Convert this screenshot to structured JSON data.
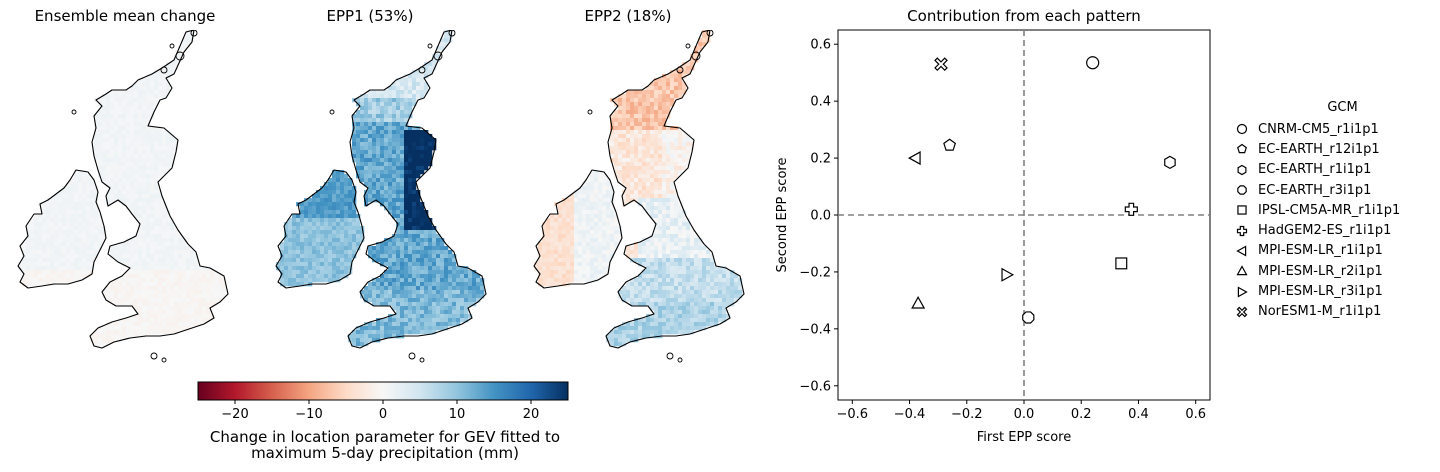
{
  "maps": [
    {
      "title": "Ensemble mean change",
      "field": "mean"
    },
    {
      "title": "EPP1 (53%)",
      "field": "epp1"
    },
    {
      "title": "EPP2 (18%)",
      "field": "epp2"
    }
  ],
  "colorbar": {
    "label_line1": "Change in location parameter for GEV fitted to",
    "label_line2": "maximum 5-day precipitation (mm)",
    "range": [
      -25,
      25
    ],
    "ticks": [
      -20,
      -10,
      0,
      10,
      20
    ],
    "tick_labels": [
      "−20",
      "−10",
      "0",
      "10",
      "20"
    ],
    "colormap": "RdBu"
  },
  "chart_data": {
    "type": "scatter",
    "title": "Contribution from each pattern",
    "xlabel": "First EPP score",
    "ylabel": "Second EPP score",
    "xlim": [
      -0.65,
      0.65
    ],
    "ylim": [
      -0.65,
      0.65
    ],
    "xticks": [
      -0.6,
      -0.4,
      -0.2,
      0.0,
      0.2,
      0.4,
      0.6
    ],
    "yticks": [
      -0.6,
      -0.4,
      -0.2,
      0.0,
      0.2,
      0.4,
      0.6
    ],
    "xtick_labels": [
      "−0.6",
      "−0.4",
      "−0.2",
      "0.0",
      "0.2",
      "0.4",
      "0.6"
    ],
    "ytick_labels": [
      "−0.6",
      "−0.4",
      "−0.2",
      "0.0",
      "0.2",
      "0.4",
      "0.6"
    ],
    "reference_lines": {
      "x": 0,
      "y": 0,
      "style": "dashed",
      "color": "#808080"
    },
    "grid": false,
    "legend": {
      "title": "GCM",
      "placement": "outside-right"
    },
    "series": [
      {
        "name": "CNRM-CM5_r1i1p1",
        "marker": "circle",
        "x": 0.24,
        "y": 0.535
      },
      {
        "name": "EC-EARTH_r12i1p1",
        "marker": "pentagon",
        "x": -0.26,
        "y": 0.245
      },
      {
        "name": "EC-EARTH_r1i1p1",
        "marker": "hexagon",
        "x": 0.51,
        "y": 0.185
      },
      {
        "name": "EC-EARTH_r3i1p1",
        "marker": "octagon",
        "x": 0.015,
        "y": -0.36
      },
      {
        "name": "IPSL-CM5A-MR_r1i1p1",
        "marker": "square",
        "x": 0.34,
        "y": -0.17
      },
      {
        "name": "HadGEM2-ES_r1i1p1",
        "marker": "plus",
        "x": 0.375,
        "y": 0.02
      },
      {
        "name": "MPI-ESM-LR_r1i1p1",
        "marker": "triangle-left",
        "x": -0.38,
        "y": 0.2
      },
      {
        "name": "MPI-ESM-LR_r2i1p1",
        "marker": "triangle-up",
        "x": -0.37,
        "y": -0.31
      },
      {
        "name": "MPI-ESM-LR_r3i1p1",
        "marker": "triangle-right",
        "x": -0.06,
        "y": -0.21
      },
      {
        "name": "NorESM1-M_r1i1p1",
        "marker": "x-filled",
        "x": -0.29,
        "y": 0.53
      }
    ]
  }
}
